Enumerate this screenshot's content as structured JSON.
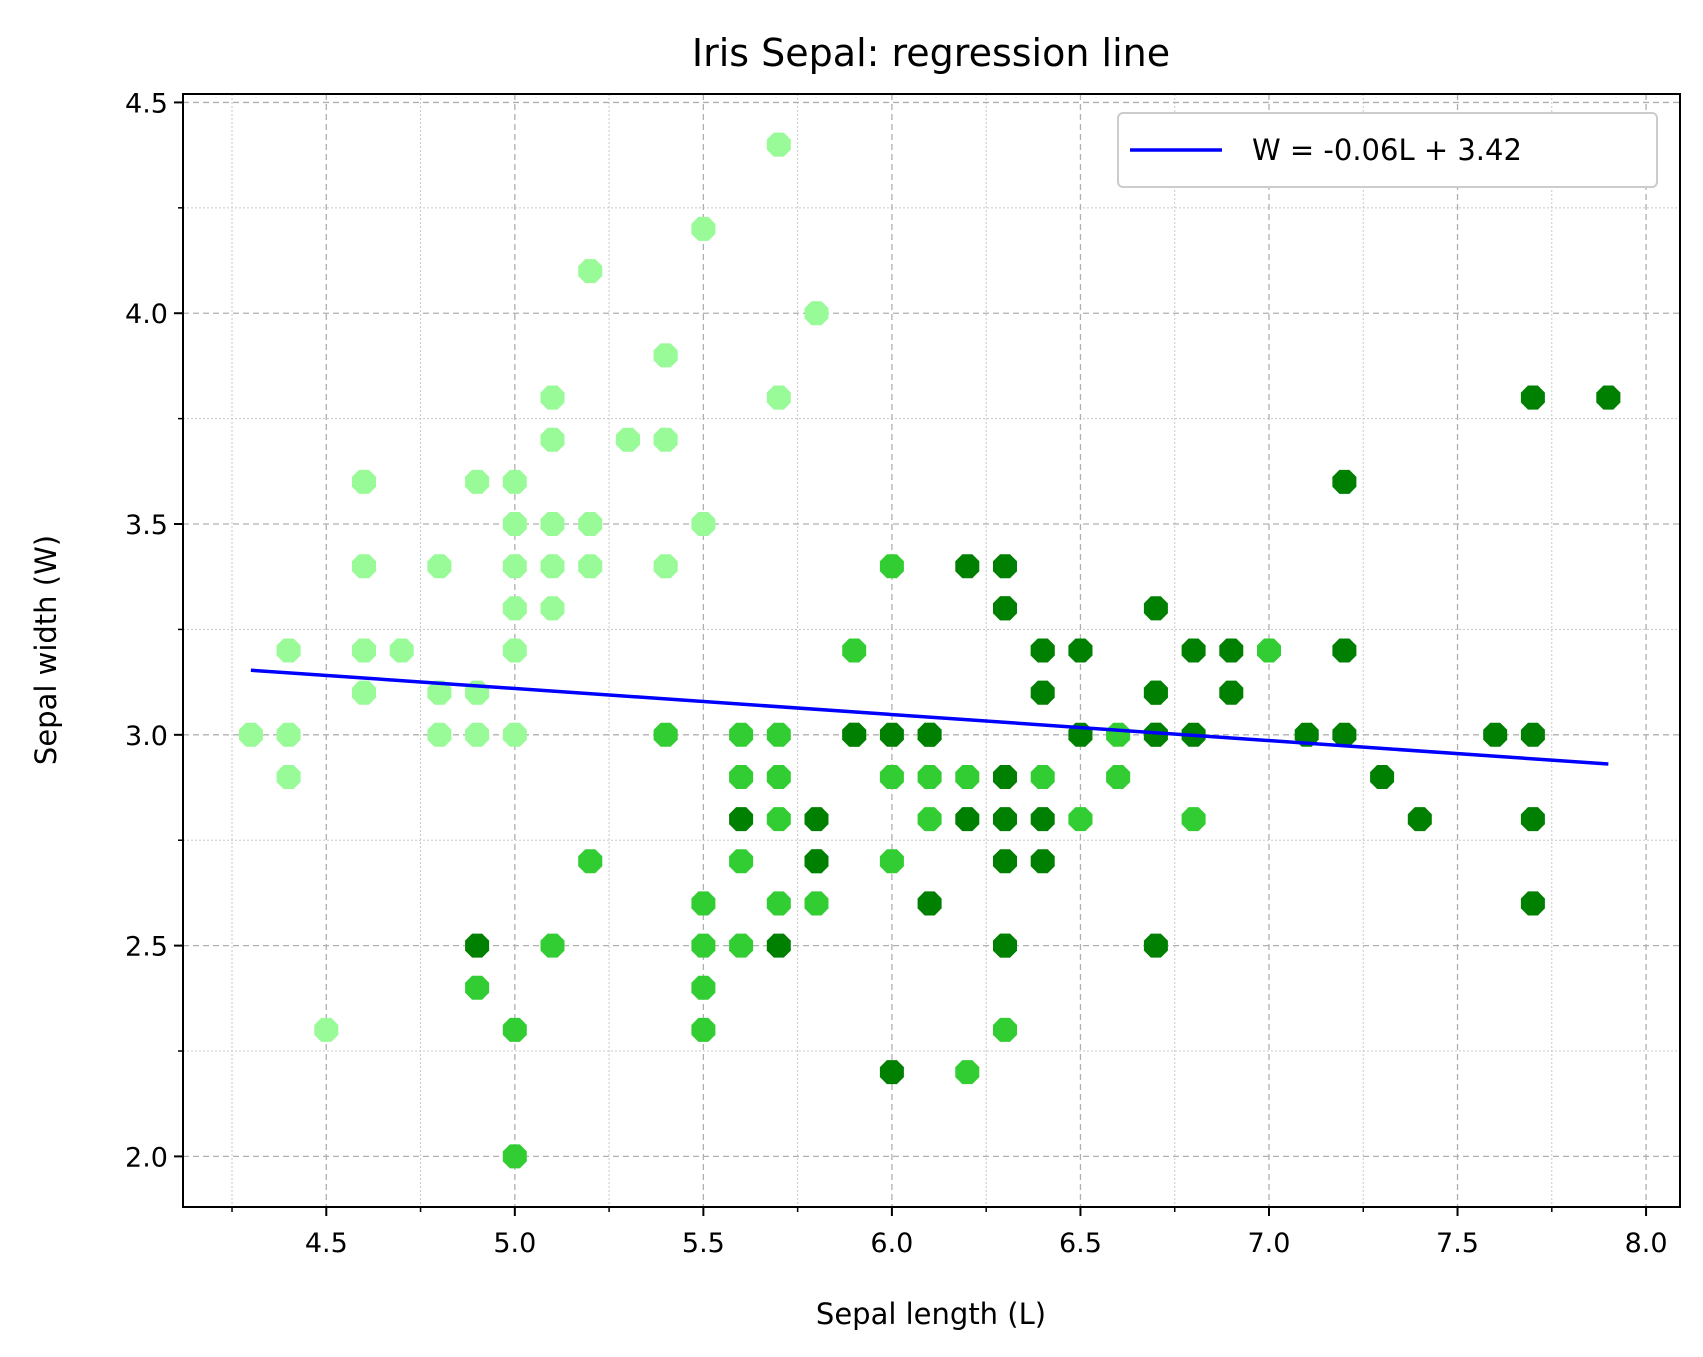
{
  "chart_data": {
    "type": "scatter",
    "title": "Iris Sepal: regression line",
    "xlabel": "Sepal length (L)",
    "ylabel": "Sepal width (W)",
    "xlim": [
      4.12,
      8.09
    ],
    "ylim": [
      1.88,
      4.52
    ],
    "x_ticks": [
      "4.5",
      "5.0",
      "5.5",
      "6.0",
      "6.5",
      "7.0",
      "7.5",
      "8.0"
    ],
    "y_ticks": [
      "2.0",
      "2.5",
      "3.0",
      "3.5",
      "4.0",
      "4.5"
    ],
    "grid": true,
    "legend_position": "top-right",
    "regression": {
      "label": "W = -0.06L + 3.42",
      "slope": -0.0618,
      "intercept": 3.4189,
      "x_range": [
        4.3,
        7.9
      ],
      "color": "#0000ff"
    },
    "series": [
      {
        "color": "#98fb98",
        "points": [
          [
            4.3,
            3.0
          ],
          [
            4.4,
            3.2
          ],
          [
            4.4,
            3.0
          ],
          [
            4.4,
            2.9
          ],
          [
            4.5,
            2.3
          ],
          [
            4.6,
            3.6
          ],
          [
            4.6,
            3.4
          ],
          [
            4.6,
            3.2
          ],
          [
            4.6,
            3.1
          ],
          [
            4.7,
            3.2
          ],
          [
            4.8,
            3.4
          ],
          [
            4.8,
            3.1
          ],
          [
            4.8,
            3.0
          ],
          [
            4.9,
            3.6
          ],
          [
            4.9,
            3.1
          ],
          [
            4.9,
            3.0
          ],
          [
            5.0,
            3.6
          ],
          [
            5.0,
            3.5
          ],
          [
            5.0,
            3.4
          ],
          [
            5.0,
            3.3
          ],
          [
            5.0,
            3.2
          ],
          [
            5.0,
            3.0
          ],
          [
            5.1,
            3.8
          ],
          [
            5.1,
            3.7
          ],
          [
            5.1,
            3.5
          ],
          [
            5.1,
            3.4
          ],
          [
            5.1,
            3.3
          ],
          [
            5.2,
            4.1
          ],
          [
            5.2,
            3.5
          ],
          [
            5.2,
            3.4
          ],
          [
            5.3,
            3.7
          ],
          [
            5.4,
            3.9
          ],
          [
            5.4,
            3.7
          ],
          [
            5.4,
            3.4
          ],
          [
            5.5,
            4.2
          ],
          [
            5.5,
            3.5
          ],
          [
            5.7,
            4.4
          ],
          [
            5.7,
            3.8
          ],
          [
            5.8,
            4.0
          ]
        ]
      },
      {
        "color": "#32cd32",
        "points": [
          [
            4.9,
            2.4
          ],
          [
            5.0,
            2.3
          ],
          [
            5.0,
            2.0
          ],
          [
            5.1,
            2.5
          ],
          [
            5.2,
            2.7
          ],
          [
            5.4,
            3.0
          ],
          [
            5.5,
            2.6
          ],
          [
            5.5,
            2.5
          ],
          [
            5.5,
            2.4
          ],
          [
            5.5,
            2.3
          ],
          [
            5.6,
            3.0
          ],
          [
            5.6,
            2.9
          ],
          [
            5.6,
            2.7
          ],
          [
            5.6,
            2.5
          ],
          [
            5.7,
            3.0
          ],
          [
            5.7,
            2.9
          ],
          [
            5.7,
            2.8
          ],
          [
            5.7,
            2.6
          ],
          [
            5.8,
            2.7
          ],
          [
            5.8,
            2.6
          ],
          [
            5.9,
            3.2
          ],
          [
            5.9,
            3.0
          ],
          [
            6.0,
            3.4
          ],
          [
            6.0,
            2.9
          ],
          [
            6.0,
            2.7
          ],
          [
            6.1,
            3.0
          ],
          [
            6.1,
            2.9
          ],
          [
            6.1,
            2.8
          ],
          [
            6.2,
            2.9
          ],
          [
            6.2,
            2.2
          ],
          [
            6.3,
            3.3
          ],
          [
            6.3,
            2.5
          ],
          [
            6.3,
            2.3
          ],
          [
            6.4,
            3.2
          ],
          [
            6.4,
            2.9
          ],
          [
            6.5,
            2.8
          ],
          [
            6.6,
            3.0
          ],
          [
            6.6,
            2.9
          ],
          [
            6.7,
            3.1
          ],
          [
            6.7,
            3.0
          ],
          [
            6.8,
            2.8
          ],
          [
            7.0,
            3.2
          ]
        ]
      },
      {
        "color": "#008000",
        "points": [
          [
            4.9,
            2.5
          ],
          [
            5.6,
            2.8
          ],
          [
            5.7,
            2.5
          ],
          [
            5.8,
            2.8
          ],
          [
            5.8,
            2.7
          ],
          [
            5.9,
            3.0
          ],
          [
            6.0,
            3.0
          ],
          [
            6.0,
            2.2
          ],
          [
            6.1,
            3.0
          ],
          [
            6.1,
            2.6
          ],
          [
            6.2,
            3.4
          ],
          [
            6.2,
            2.8
          ],
          [
            6.3,
            3.4
          ],
          [
            6.3,
            3.3
          ],
          [
            6.3,
            2.9
          ],
          [
            6.3,
            2.8
          ],
          [
            6.3,
            2.7
          ],
          [
            6.3,
            2.5
          ],
          [
            6.4,
            3.2
          ],
          [
            6.4,
            3.1
          ],
          [
            6.4,
            2.8
          ],
          [
            6.4,
            2.7
          ],
          [
            6.5,
            3.2
          ],
          [
            6.5,
            3.0
          ],
          [
            6.7,
            3.3
          ],
          [
            6.7,
            3.1
          ],
          [
            6.7,
            3.0
          ],
          [
            6.7,
            2.5
          ],
          [
            6.8,
            3.2
          ],
          [
            6.8,
            3.0
          ],
          [
            6.9,
            3.2
          ],
          [
            6.9,
            3.1
          ],
          [
            7.1,
            3.0
          ],
          [
            7.2,
            3.6
          ],
          [
            7.2,
            3.2
          ],
          [
            7.2,
            3.0
          ],
          [
            7.3,
            2.9
          ],
          [
            7.4,
            2.8
          ],
          [
            7.6,
            3.0
          ],
          [
            7.7,
            3.8
          ],
          [
            7.7,
            3.0
          ],
          [
            7.7,
            2.8
          ],
          [
            7.7,
            2.6
          ],
          [
            7.9,
            3.8
          ]
        ]
      }
    ]
  }
}
